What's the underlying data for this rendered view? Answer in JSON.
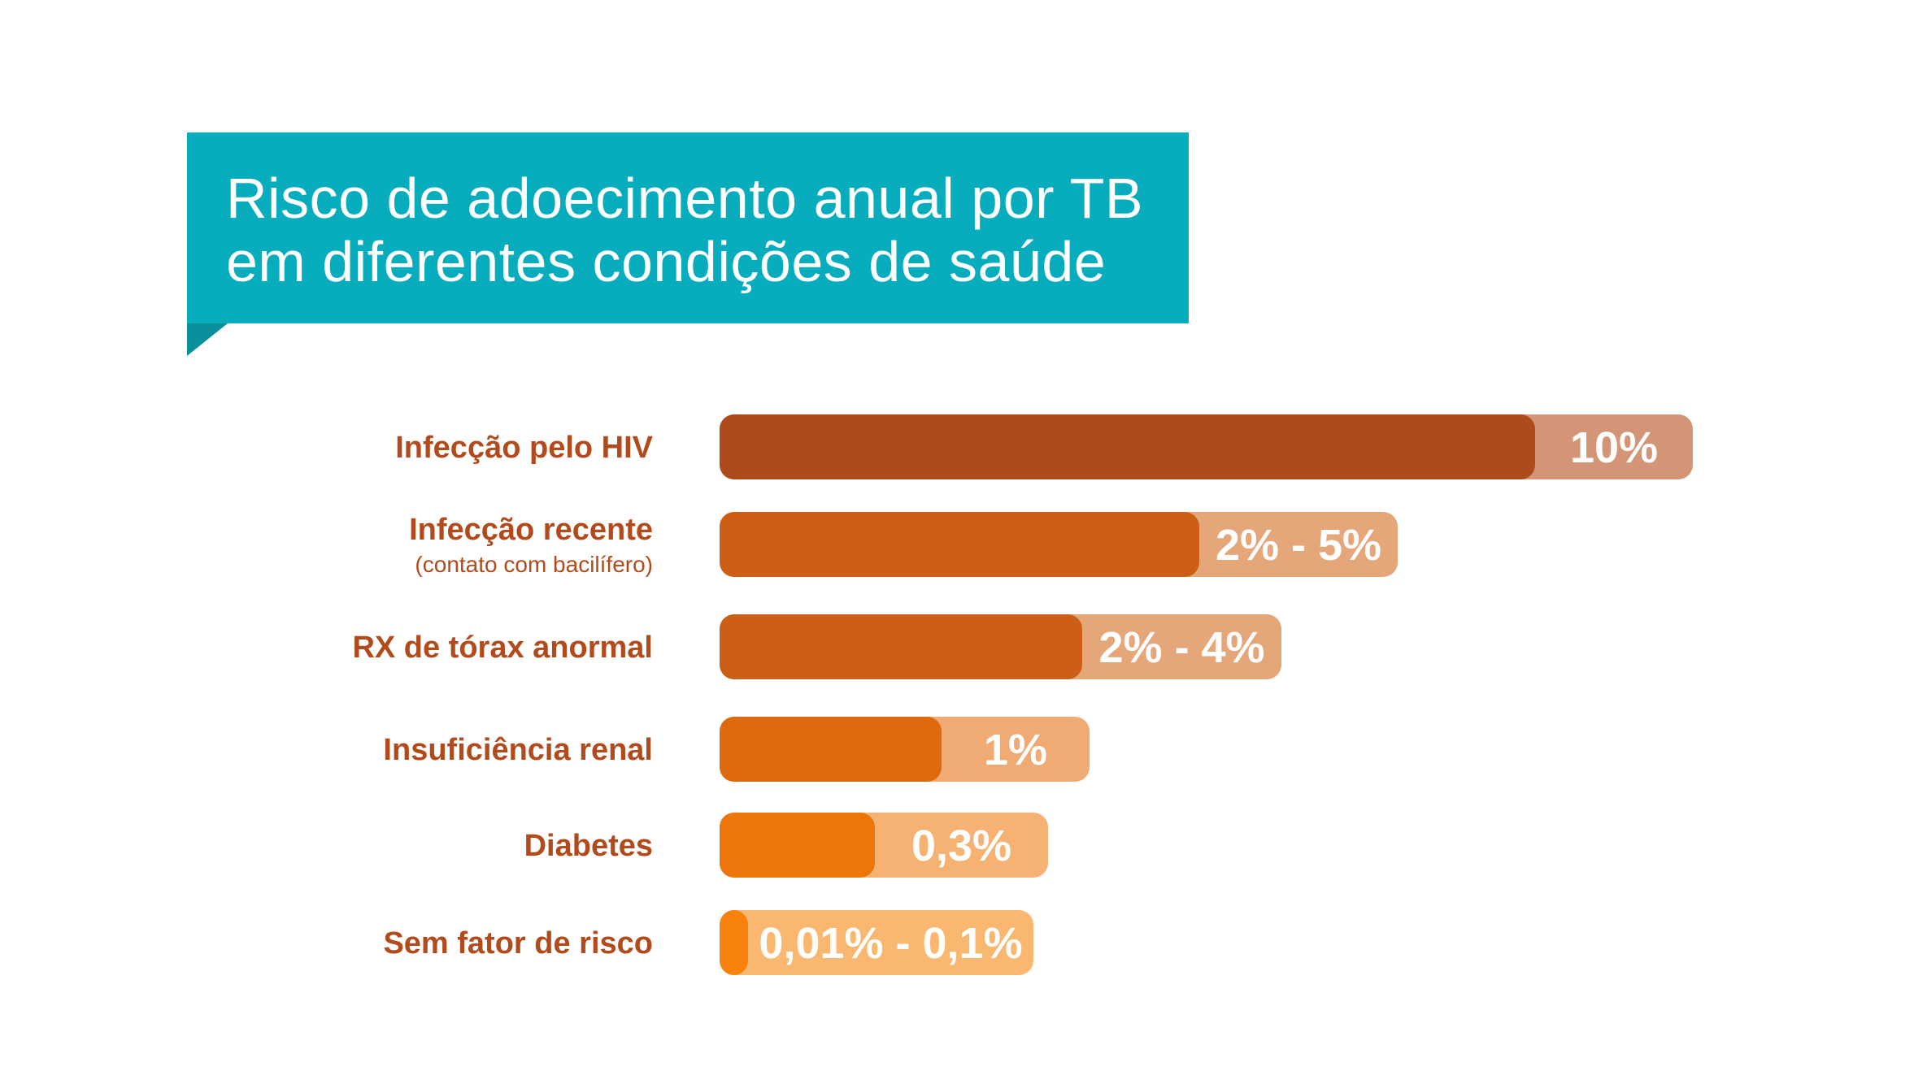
{
  "chart_data": {
    "type": "bar",
    "orientation": "horizontal",
    "title": "Risco de adoecimento anual por TB em diferentes condições de saúde",
    "title_lines": [
      "Risco de adoecimento anual por TB",
      "em diferentes condições de saúde"
    ],
    "categories": [
      "Infecção pelo HIV",
      "Infecção recente",
      "RX de tórax anormal",
      "Insuficiência renal",
      "Diabetes",
      "Sem fator de risco"
    ],
    "sublabels": [
      "",
      "(contato com bacilífero)",
      "",
      "",
      "",
      ""
    ],
    "value_labels": [
      "10%",
      "2% - 5%",
      "2% - 4%",
      "1%",
      "0,3%",
      "0,01% - 0,1%"
    ],
    "values": [
      10,
      5,
      4,
      1,
      0.3,
      0.1
    ],
    "dark_colors": [
      "#ad4b1d",
      "#cc5e15",
      "#cc5e15",
      "#df6a0e",
      "#ec7609",
      "#f7820d"
    ],
    "light_colors": [
      "#d49576",
      "#e5a779",
      "#e5a779",
      "#f0aa74",
      "#f5b272",
      "#f9b770"
    ]
  }
}
